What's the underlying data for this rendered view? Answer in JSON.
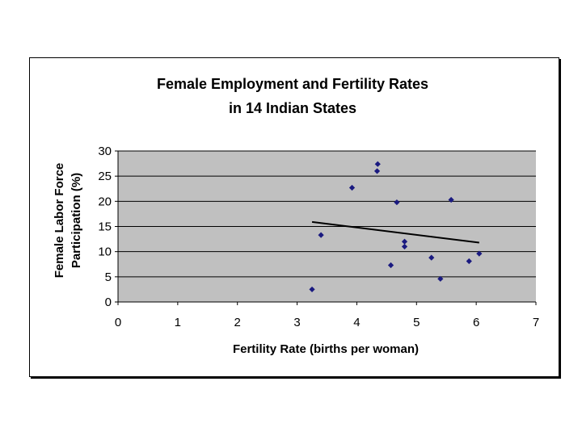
{
  "chart_data": {
    "type": "scatter",
    "title_lines": [
      "Female Employment and Fertility Rates",
      "in 14 Indian States"
    ],
    "xlabel": "Fertility Rate (births per woman)",
    "ylabel_lines": [
      "Female Labor Force",
      "Participation (%)"
    ],
    "xlim": [
      0,
      7
    ],
    "ylim": [
      0,
      30
    ],
    "x_ticks": [
      0,
      1,
      2,
      3,
      4,
      5,
      6,
      7
    ],
    "y_ticks": [
      0,
      5,
      10,
      15,
      20,
      25,
      30
    ],
    "grid": "horizontal",
    "legend": "none",
    "points": [
      {
        "x": 3.25,
        "y": 2.5
      },
      {
        "x": 3.4,
        "y": 13.3
      },
      {
        "x": 3.92,
        "y": 22.7
      },
      {
        "x": 4.35,
        "y": 27.4
      },
      {
        "x": 4.34,
        "y": 26.0
      },
      {
        "x": 4.57,
        "y": 7.3
      },
      {
        "x": 4.67,
        "y": 19.8
      },
      {
        "x": 4.8,
        "y": 12.0
      },
      {
        "x": 4.8,
        "y": 11.0
      },
      {
        "x": 5.25,
        "y": 8.8
      },
      {
        "x": 5.4,
        "y": 4.6
      },
      {
        "x": 5.58,
        "y": 20.3
      },
      {
        "x": 5.88,
        "y": 8.1
      },
      {
        "x": 6.05,
        "y": 9.6
      }
    ],
    "trendline": {
      "x1": 3.25,
      "y1": 15.9,
      "x2": 6.05,
      "y2": 11.8
    },
    "colors": {
      "plot_background": "#c0c0c0",
      "marker": "#1a1a80",
      "gridline": "#000000",
      "trendline": "#000000"
    }
  }
}
